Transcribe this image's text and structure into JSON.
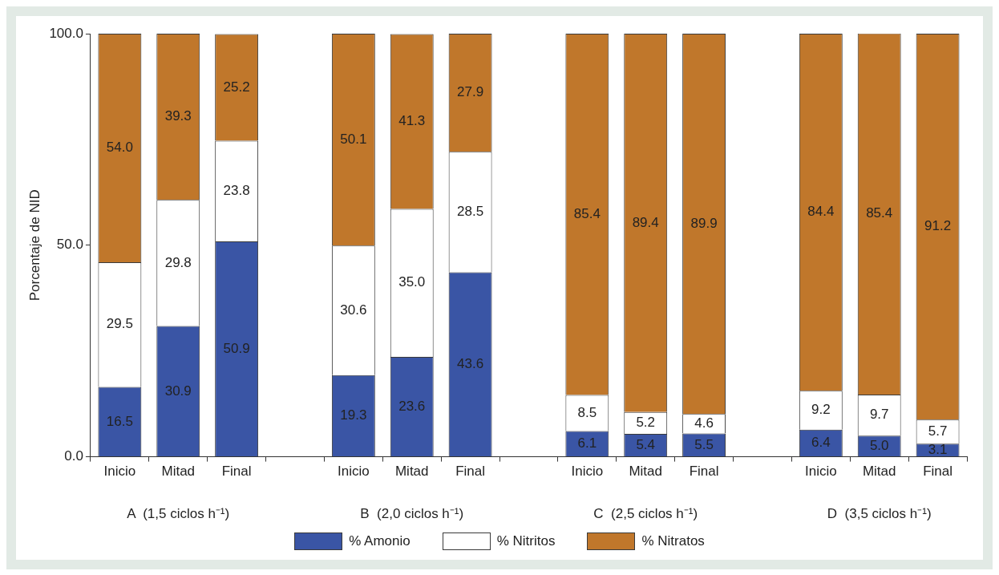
{
  "chart_data": {
    "type": "bar",
    "stacked": true,
    "ylabel": "Porcentaje de NID",
    "categories": [
      "Inicio",
      "Mitad",
      "Final",
      null,
      "Inicio",
      "Mitad",
      "Final",
      null,
      "Inicio",
      "Mitad",
      "Final",
      null,
      "Inicio",
      "Mitad",
      "Final"
    ],
    "series": [
      {
        "name": "% Amonio",
        "color": "#3a55a5",
        "values": [
          16.5,
          30.9,
          50.9,
          null,
          19.3,
          23.6,
          43.6,
          null,
          6.1,
          5.4,
          5.5,
          null,
          6.4,
          5.0,
          3.1
        ],
        "value_labels": [
          "16.5",
          "30.9",
          "50.9",
          null,
          "19.3",
          "23.6",
          "43.6",
          null,
          "6.1",
          "5.4",
          "5.5",
          null,
          "6.4",
          "5.0",
          "3.1"
        ]
      },
      {
        "name": "% Nitritos",
        "color": "#ffffff",
        "values": [
          29.5,
          29.8,
          23.8,
          null,
          30.6,
          35.0,
          28.5,
          null,
          8.5,
          5.2,
          4.6,
          null,
          9.2,
          9.7,
          5.7
        ],
        "value_labels": [
          "29.5",
          "29.8",
          "23.8",
          null,
          "30.6",
          "35.0",
          "28.5",
          null,
          "8.5",
          "5.2",
          "4.6",
          null,
          "9.2",
          "9.7",
          "5.7"
        ]
      },
      {
        "name": "% Nitratos",
        "color": "#c0772b",
        "values": [
          54.0,
          39.3,
          25.2,
          null,
          50.1,
          41.3,
          27.9,
          null,
          85.4,
          89.4,
          89.9,
          null,
          84.4,
          85.4,
          91.2
        ],
        "value_labels": [
          "54.0",
          "39.3",
          "25.2",
          null,
          "50.1",
          "41.3",
          "27.9",
          null,
          "85.4",
          "89.4",
          "89.9",
          null,
          "84.4",
          "85.4",
          "91.2"
        ]
      }
    ],
    "ylim": [
      0,
      100
    ],
    "yticks": [
      {
        "value": 0,
        "label": "0.0"
      },
      {
        "value": 50,
        "label": "50.0"
      },
      {
        "value": 100,
        "label": "100.0"
      }
    ],
    "annotations": [
      "A  (1,5 ciclos h⁻¹)",
      "B  (2,0 ciclos h⁻¹)",
      "C  (2,5 ciclos h⁻¹)",
      "D  (3,5 ciclos h⁻¹)"
    ],
    "grid": false,
    "legend": "bottom"
  }
}
